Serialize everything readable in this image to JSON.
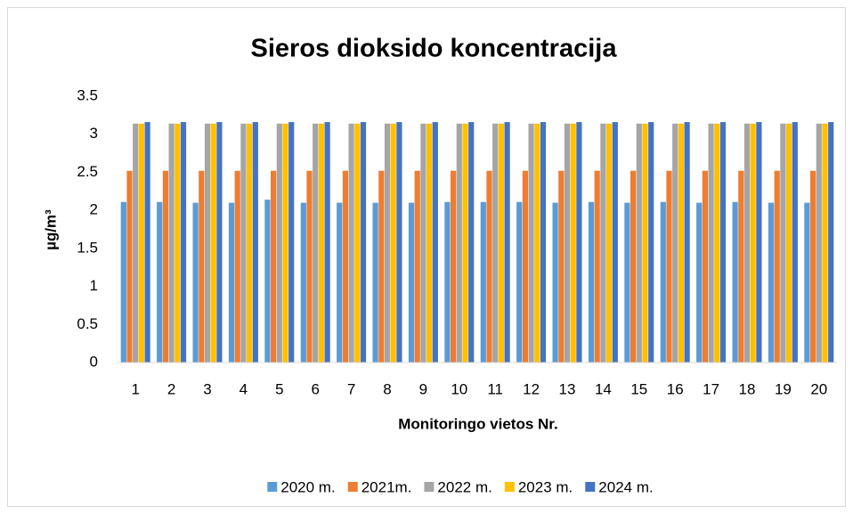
{
  "chart_data": {
    "type": "bar",
    "title": "Sieros dioksido koncentracija",
    "x_label": "Monitoringo vietos Nr.",
    "y_label": "µg/m³",
    "categories": [
      "1",
      "2",
      "3",
      "4",
      "5",
      "6",
      "7",
      "8",
      "9",
      "10",
      "11",
      "12",
      "13",
      "14",
      "15",
      "16",
      "17",
      "18",
      "19",
      "20"
    ],
    "series": [
      {
        "name": "2020 m.",
        "color": "#5b9bd5",
        "values": [
          2.11,
          2.11,
          2.1,
          2.1,
          2.14,
          2.1,
          2.1,
          2.1,
          2.1,
          2.11,
          2.11,
          2.11,
          2.1,
          2.11,
          2.1,
          2.11,
          2.1,
          2.11,
          2.1,
          2.1
        ]
      },
      {
        "name": "2021m.",
        "color": "#ed7d31",
        "values": [
          2.52,
          2.52,
          2.52,
          2.52,
          2.52,
          2.52,
          2.52,
          2.52,
          2.52,
          2.52,
          2.52,
          2.52,
          2.52,
          2.52,
          2.52,
          2.52,
          2.52,
          2.52,
          2.52,
          2.52
        ]
      },
      {
        "name": "2022 m.",
        "color": "#a5a5a5",
        "values": [
          3.14,
          3.14,
          3.14,
          3.14,
          3.14,
          3.14,
          3.14,
          3.14,
          3.14,
          3.14,
          3.14,
          3.14,
          3.14,
          3.14,
          3.14,
          3.14,
          3.14,
          3.14,
          3.14,
          3.14
        ]
      },
      {
        "name": "2023 m.",
        "color": "#ffc000",
        "values": [
          3.14,
          3.14,
          3.14,
          3.14,
          3.14,
          3.14,
          3.14,
          3.14,
          3.14,
          3.14,
          3.14,
          3.14,
          3.14,
          3.14,
          3.14,
          3.14,
          3.14,
          3.14,
          3.14,
          3.14
        ]
      },
      {
        "name": "2024 m.",
        "color": "#4472c4",
        "values": [
          3.16,
          3.16,
          3.16,
          3.16,
          3.16,
          3.16,
          3.16,
          3.16,
          3.16,
          3.16,
          3.16,
          3.16,
          3.16,
          3.16,
          3.16,
          3.16,
          3.16,
          3.16,
          3.16,
          3.16
        ]
      }
    ],
    "ylim": [
      0,
      3.5
    ],
    "yticks": [
      0,
      0.5,
      1,
      1.5,
      2,
      2.5,
      3,
      3.5
    ],
    "grid": false,
    "legend": "bottom"
  }
}
